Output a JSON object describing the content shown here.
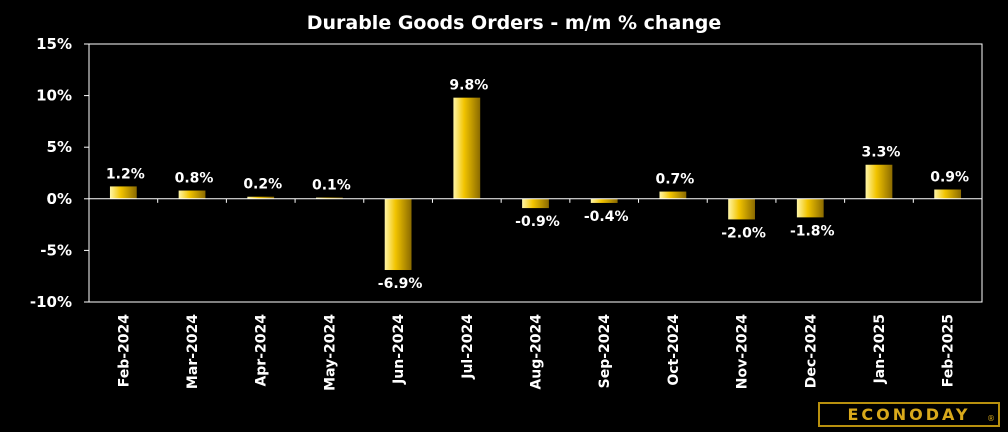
{
  "chart_data": {
    "type": "bar",
    "title": "Durable Goods Orders - m/m % change",
    "xlabel": "",
    "ylabel": "",
    "categories": [
      "Feb-2024",
      "Mar-2024",
      "Apr-2024",
      "May-2024",
      "Jun-2024",
      "Jul-2024",
      "Aug-2024",
      "Sep-2024",
      "Oct-2024",
      "Nov-2024",
      "Dec-2024",
      "Jan-2025",
      "Feb-2025"
    ],
    "values": [
      1.2,
      0.8,
      0.2,
      0.1,
      -6.9,
      9.8,
      -0.9,
      -0.4,
      0.7,
      -2.0,
      -1.8,
      3.3,
      0.9
    ],
    "data_labels": [
      "1.2%",
      "0.8%",
      "0.2%",
      "0.1%",
      "-6.9%",
      "9.8%",
      "-0.9%",
      "-0.4%",
      "0.7%",
      "-2.0%",
      "-1.8%",
      "3.3%",
      "0.9%"
    ],
    "ylim": [
      -10,
      15
    ],
    "yticks": [
      -10,
      -5,
      0,
      5,
      10,
      15
    ],
    "ytick_labels": [
      "-10%",
      "-5%",
      "0%",
      "5%",
      "10%",
      "15%"
    ],
    "grid": false,
    "colors": {
      "background": "#000000",
      "bar_light": "#fff6a8",
      "bar_mid": "#f2c400",
      "bar_dark": "#8a6a00",
      "axis": "#ffffff"
    }
  },
  "branding": {
    "logo_text": "ECONODAY",
    "logo_mark": "®",
    "logo_color": "#d9a91b"
  }
}
